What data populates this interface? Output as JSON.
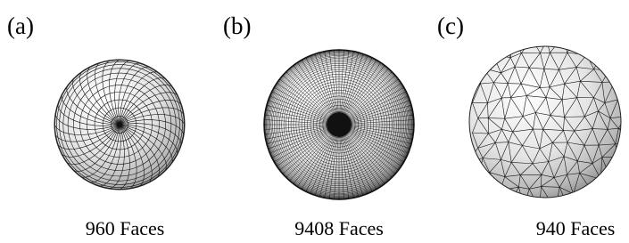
{
  "panels": [
    {
      "label": "(a)",
      "caption": "960 Faces"
    },
    {
      "label": "(b)",
      "caption": "9408 Faces"
    },
    {
      "label": "(c)",
      "caption": "940 Faces"
    }
  ]
}
